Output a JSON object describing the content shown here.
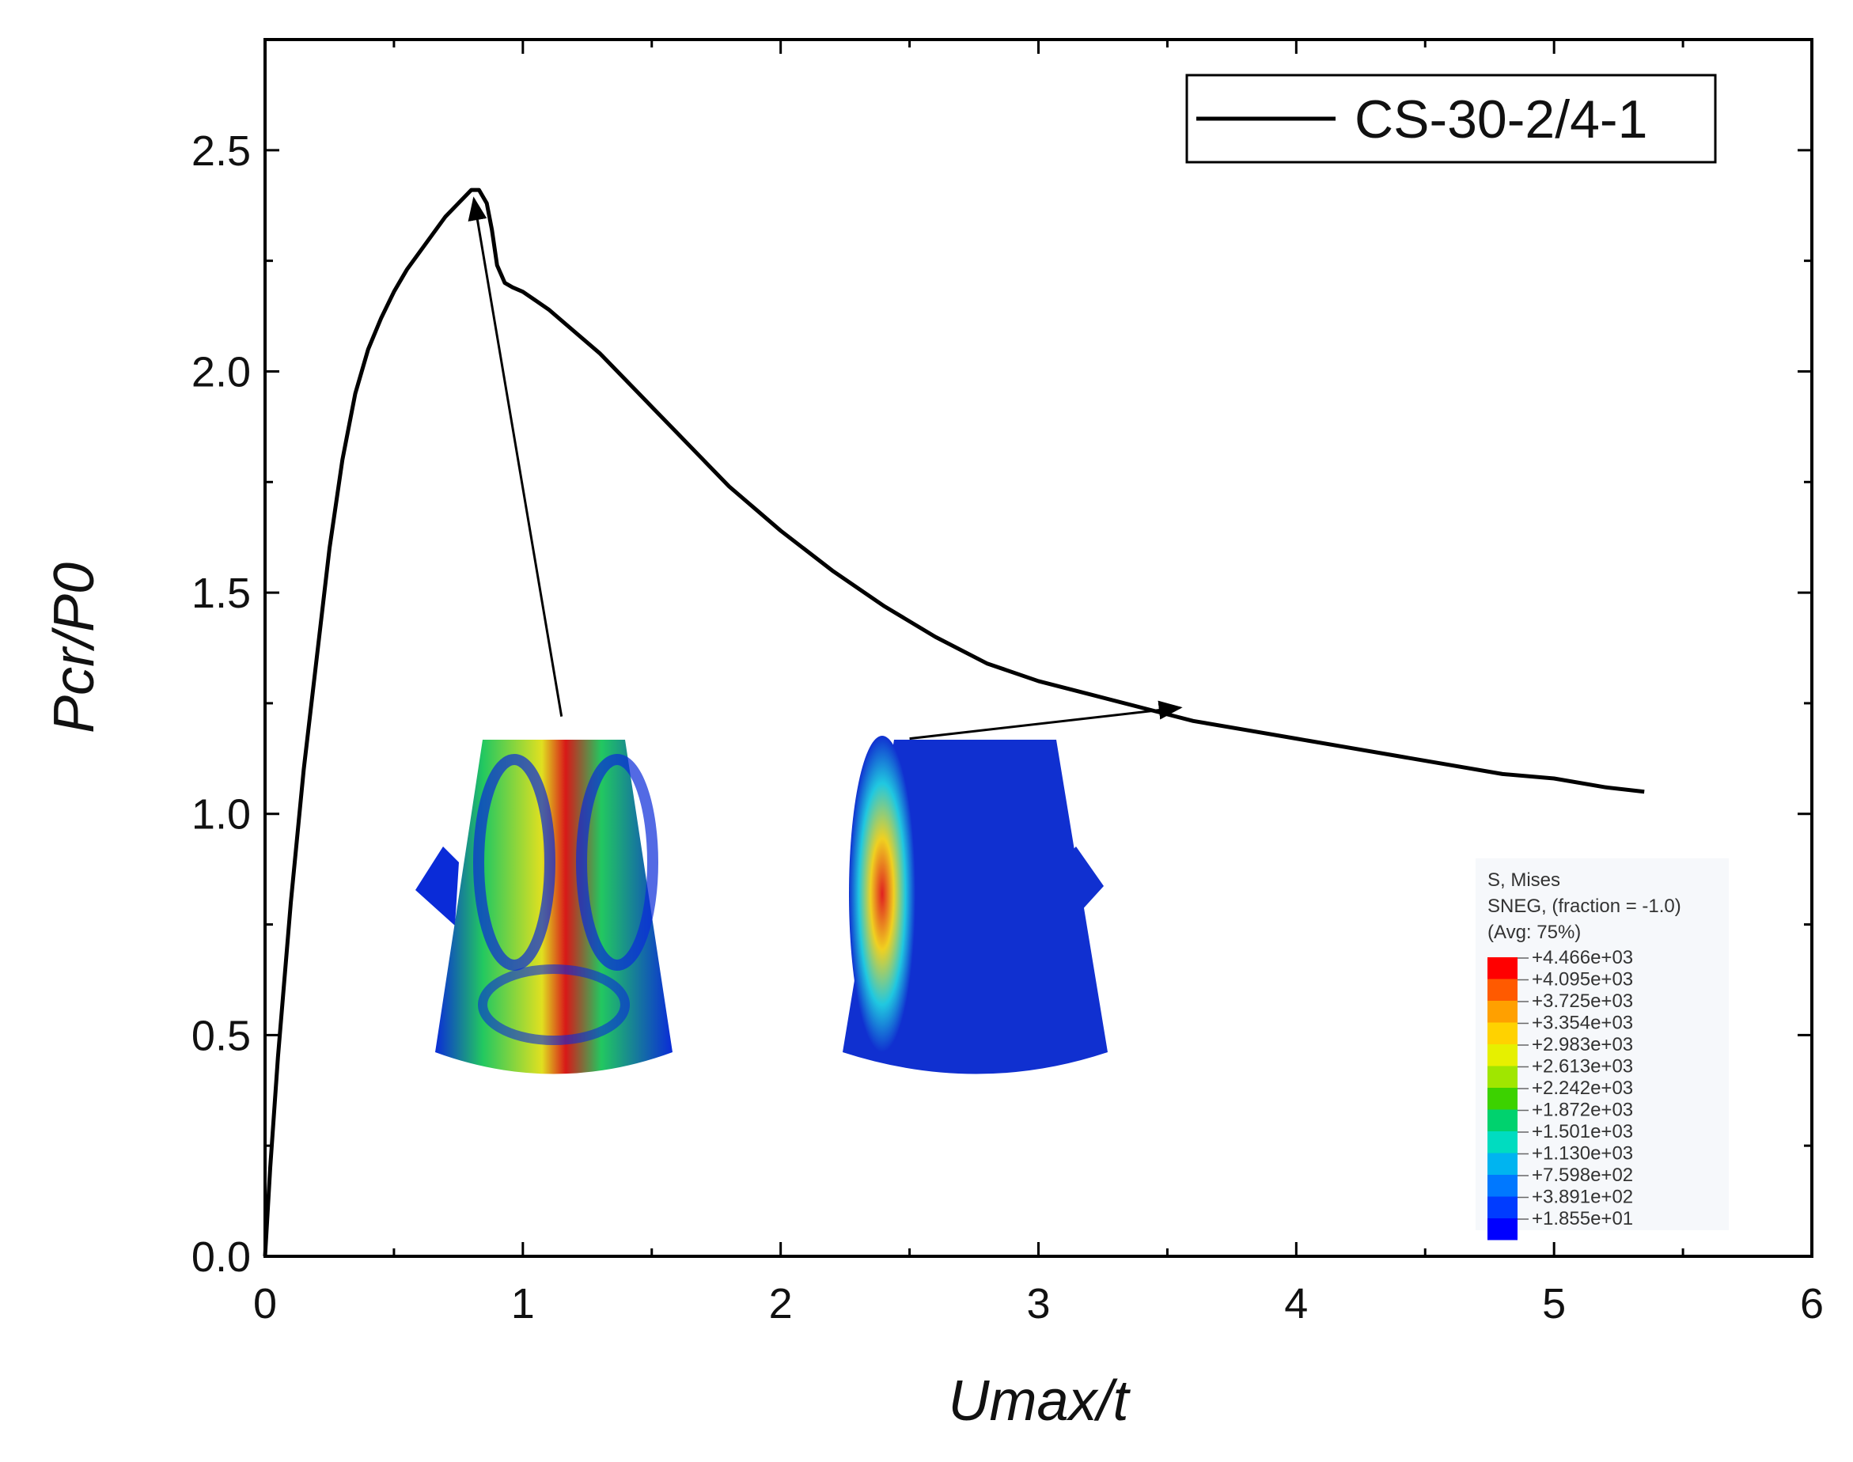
{
  "chart_data": {
    "type": "line",
    "xlabel": "Umax/t",
    "ylabel": "Pcr/P0",
    "xlim": [
      0,
      6
    ],
    "ylim": [
      0,
      2.75
    ],
    "xticks": [
      0,
      1,
      2,
      3,
      4,
      5,
      6
    ],
    "xtick_labels": [
      "0",
      "1",
      "2",
      "3",
      "4",
      "5",
      "6"
    ],
    "yticks": [
      0.0,
      0.5,
      1.0,
      1.5,
      2.0,
      2.5
    ],
    "ytick_labels": [
      "0.0",
      "0.5",
      "1.0",
      "1.5",
      "2.0",
      "2.5"
    ],
    "grid": false,
    "legend": "top-right",
    "series": [
      {
        "name": "CS-30-2/4-1",
        "color": "#000000",
        "x": [
          0,
          0.02,
          0.05,
          0.1,
          0.15,
          0.2,
          0.25,
          0.3,
          0.35,
          0.4,
          0.45,
          0.5,
          0.55,
          0.6,
          0.65,
          0.7,
          0.75,
          0.8,
          0.83,
          0.86,
          0.88,
          0.9,
          0.93,
          0.96,
          1.0,
          1.05,
          1.1,
          1.2,
          1.3,
          1.4,
          1.5,
          1.6,
          1.7,
          1.8,
          1.9,
          2.0,
          2.2,
          2.4,
          2.6,
          2.8,
          3.0,
          3.2,
          3.4,
          3.6,
          3.8,
          4.0,
          4.2,
          4.4,
          4.6,
          4.8,
          5.0,
          5.2,
          5.35
        ],
        "y": [
          0.0,
          0.2,
          0.45,
          0.8,
          1.1,
          1.35,
          1.6,
          1.8,
          1.95,
          2.05,
          2.12,
          2.18,
          2.23,
          2.27,
          2.31,
          2.35,
          2.38,
          2.41,
          2.41,
          2.38,
          2.32,
          2.24,
          2.2,
          2.19,
          2.18,
          2.16,
          2.14,
          2.09,
          2.04,
          1.98,
          1.92,
          1.86,
          1.8,
          1.74,
          1.69,
          1.64,
          1.55,
          1.47,
          1.4,
          1.34,
          1.3,
          1.27,
          1.24,
          1.21,
          1.19,
          1.17,
          1.15,
          1.13,
          1.11,
          1.09,
          1.08,
          1.06,
          1.05
        ]
      }
    ],
    "annotations": [
      {
        "type": "arrow",
        "from": [
          1.15,
          1.22
        ],
        "to": [
          0.81,
          2.39
        ]
      },
      {
        "type": "arrow",
        "from": [
          2.5,
          1.17
        ],
        "to": [
          3.55,
          1.24
        ]
      }
    ],
    "insets": [
      {
        "name": "fem-contour-at-peak",
        "colors": [
          "#0a2bd8",
          "#22c860",
          "#e0e020",
          "#d81818"
        ]
      },
      {
        "name": "fem-contour-post-buckling",
        "colors": [
          "#1030d0",
          "#20c8e0",
          "#f0d020",
          "#e02020"
        ]
      }
    ],
    "colorbar": {
      "title_lines": [
        "S, Mises",
        "SNEG, (fraction = -1.0)",
        "(Avg: 75%)"
      ],
      "labels": [
        "+4.466e+03",
        "+4.095e+03",
        "+3.725e+03",
        "+3.354e+03",
        "+2.983e+03",
        "+2.613e+03",
        "+2.242e+03",
        "+1.872e+03",
        "+1.501e+03",
        "+1.130e+03",
        "+7.598e+02",
        "+3.891e+02",
        "+1.855e+01"
      ],
      "colors": [
        "#ff0000",
        "#ff5a00",
        "#ffa000",
        "#ffd200",
        "#e6f000",
        "#a0e600",
        "#3cd200",
        "#00d26e",
        "#00dcc0",
        "#00b4f0",
        "#0078ff",
        "#003cff",
        "#0000ff"
      ]
    }
  }
}
